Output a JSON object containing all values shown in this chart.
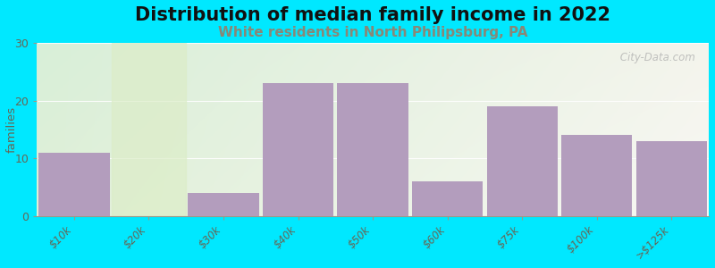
{
  "title": "Distribution of median family income in 2022",
  "subtitle": "White residents in North Philipsburg, PA",
  "categories": [
    "$10k",
    "$20k",
    "$30k",
    "$40k",
    "$50k",
    "$60k",
    "$75k",
    "$100k",
    ">$125k"
  ],
  "values": [
    11,
    0,
    4,
    23,
    23,
    6,
    19,
    14,
    13
  ],
  "bar_color": "#b39dbd",
  "ylabel": "families",
  "ylim": [
    0,
    30
  ],
  "yticks": [
    0,
    10,
    20,
    30
  ],
  "background_outer": "#00e8ff",
  "background_top_left": "#d8efd8",
  "background_top_right": "#f0f0e8",
  "background_bottom_left": "#e8f5e0",
  "background_bottom_right": "#f8f8f0",
  "col_zero_color": "#dcedc8",
  "col_gap_color": "#dcedc8",
  "title_fontsize": 15,
  "subtitle_fontsize": 11,
  "subtitle_color": "#888877",
  "watermark": " City-Data.com"
}
